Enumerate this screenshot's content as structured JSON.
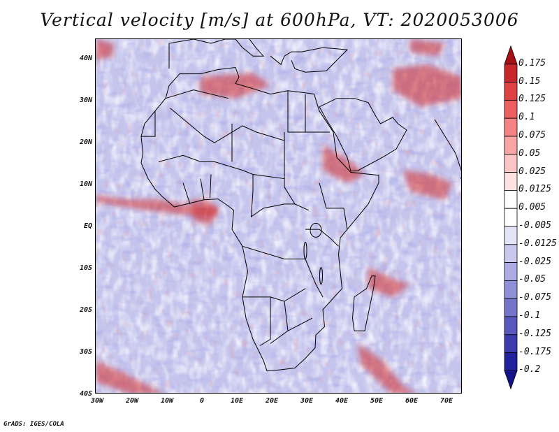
{
  "map": {
    "title": "Vertical velocity [m/s] at 600hPa, VT: 2020053006",
    "credit": "GrADS: IGES/COLA",
    "lat_labels": [
      "40N",
      "30N",
      "20N",
      "10N",
      "EQ",
      "10S",
      "20S",
      "30S",
      "40S"
    ],
    "lon_labels": [
      "30W",
      "20W",
      "10W",
      "0",
      "10E",
      "20E",
      "30E",
      "40E",
      "50E",
      "60E",
      "70E"
    ],
    "colorbar_labels": [
      "0.175",
      "0.15",
      "0.125",
      "0.1",
      "0.075",
      "0.05",
      "0.025",
      "0.0125",
      "0.005",
      "-0.005",
      "-0.0125",
      "-0.025",
      "-0.05",
      "-0.075",
      "-0.1",
      "-0.125",
      "-0.175",
      "-0.2"
    ],
    "colorbar_colors": [
      "#a50f15",
      "#c8282b",
      "#de4245",
      "#ec6061",
      "#f58384",
      "#f9a5a5",
      "#fcc6c6",
      "#fee2e2",
      "#ffffff",
      "#ffffff",
      "#e4e4f6",
      "#c9c9ee",
      "#adade4",
      "#9090d8",
      "#7474cb",
      "#5858bd",
      "#3c3cae",
      "#22229c",
      "#13138a"
    ],
    "positive_color": "#d22a2a",
    "negative_color": "#4848c8"
  }
}
